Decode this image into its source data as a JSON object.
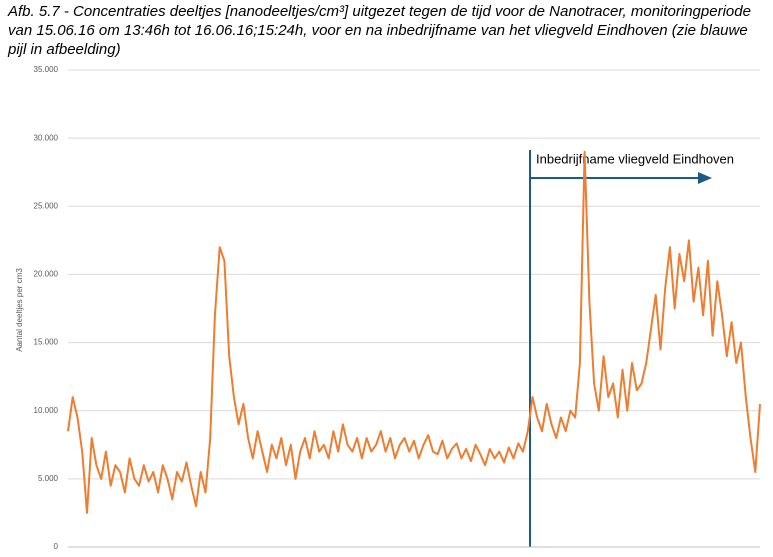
{
  "chart_data": {
    "type": "line",
    "title": "Afb. 5.7 - Concentraties deeltjes [nanodeeltjes/cm³] uitgezet tegen de tijd voor de Nanotracer, monitoringperiode van 15.06.16 om 13:46h tot 16.06.16;15:24h, voor en na inbedrijfname van het vliegveld Eindhoven (zie blauwe pijl in afbeelding)",
    "ylabel": "Aantal deeltjes per cm3",
    "annotation": "Inbedrijfname vliegveld Eindhoven",
    "ylim": [
      0,
      35000
    ],
    "yticks": [
      {
        "value": 0,
        "label": "0"
      },
      {
        "value": 5000,
        "label": "5.000"
      },
      {
        "value": 10000,
        "label": "10.000"
      },
      {
        "value": 15000,
        "label": "15.000"
      },
      {
        "value": 20000,
        "label": "20.000"
      },
      {
        "value": 25000,
        "label": "25.000"
      },
      {
        "value": 30000,
        "label": "30.000"
      },
      {
        "value": 35000,
        "label": "35.000"
      }
    ],
    "grid": true,
    "series": [
      {
        "color": "#ed7d31",
        "values": [
          8500,
          11000,
          9500,
          7000,
          2500,
          8000,
          6000,
          5000,
          7000,
          4500,
          6000,
          5500,
          4000,
          6500,
          5000,
          4500,
          6000,
          4800,
          5500,
          4000,
          6000,
          5000,
          3500,
          5500,
          4800,
          6200,
          4500,
          3000,
          5500,
          4000,
          8000,
          17000,
          22000,
          21000,
          14000,
          11000,
          9000,
          10500,
          8000,
          6500,
          8500,
          7000,
          5500,
          7500,
          6500,
          8000,
          6000,
          7500,
          5000,
          7000,
          8000,
          6500,
          8500,
          7000,
          7500,
          6500,
          8500,
          7000,
          9000,
          7500,
          7000,
          8000,
          6500,
          8000,
          7000,
          7500,
          8500,
          7000,
          8000,
          6500,
          7500,
          8000,
          7000,
          7800,
          6500,
          7500,
          8200,
          7000,
          6800,
          7800,
          6500,
          7200,
          7600,
          6500,
          7200,
          6300,
          7500,
          6800,
          6000,
          7200,
          6500,
          7000,
          6200,
          7300,
          6500,
          7600,
          7000,
          8500,
          11000,
          9500,
          8500,
          10500,
          9000,
          8000,
          9500,
          8500,
          10000,
          9500,
          13500,
          29000,
          18000,
          12000,
          10000,
          14000,
          11000,
          12000,
          9500,
          13000,
          10000,
          13500,
          11500,
          12000,
          13500,
          16000,
          18500,
          14500,
          19000,
          22000,
          17500,
          21500,
          19500,
          22500,
          18000,
          20500,
          17000,
          21000,
          15500,
          19500,
          17000,
          14000,
          16500,
          13500,
          15000,
          11000,
          8000,
          5500,
          10500
        ]
      }
    ]
  }
}
